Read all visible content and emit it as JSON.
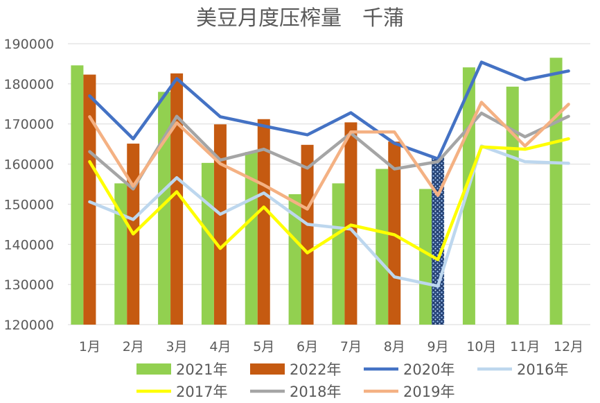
{
  "chart_data": {
    "type": "bar",
    "title": "美豆月度压榨量　千蒲",
    "xlabel": "",
    "ylabel": "",
    "ylim": [
      120000,
      190000
    ],
    "ytick_step": 10000,
    "grid": true,
    "legend_position": "bottom",
    "categories": [
      "1月",
      "2月",
      "3月",
      "4月",
      "5月",
      "6月",
      "7月",
      "8月",
      "9月",
      "10月",
      "11月",
      "12月"
    ],
    "bar_series": [
      {
        "name": "2021年",
        "color": "#92D050",
        "values": [
          184600,
          155200,
          178000,
          160300,
          163000,
          152500,
          155200,
          158800,
          153800,
          184100,
          179300,
          186500
        ]
      },
      {
        "name": "2022年",
        "color": "#C55A11",
        "pattern_month_index": 8,
        "values": [
          182300,
          165100,
          182600,
          169900,
          171200,
          164800,
          170400,
          165600,
          161700,
          null,
          null,
          null
        ]
      }
    ],
    "line_series": [
      {
        "name": "2020年",
        "color": "#4472C4",
        "values": [
          177000,
          166300,
          181300,
          171800,
          169500,
          167300,
          172800,
          165200,
          161300,
          185400,
          181000,
          183200
        ]
      },
      {
        "name": "2016年",
        "color": "#BDD7EE",
        "values": [
          150600,
          146200,
          156600,
          147500,
          152800,
          145000,
          143800,
          131900,
          129600,
          164500,
          160600,
          160200
        ]
      },
      {
        "name": "2017年",
        "color": "#FFFF00",
        "values": [
          160600,
          142600,
          153100,
          139000,
          149300,
          137900,
          144800,
          142400,
          136200,
          164300,
          163700,
          166300
        ]
      },
      {
        "name": "2018年",
        "color": "#A5A5A5",
        "values": [
          163100,
          153800,
          171900,
          161000,
          163700,
          159000,
          167700,
          158800,
          160600,
          172700,
          166800,
          171900
        ]
      },
      {
        "name": "2019年",
        "color": "#F4B183",
        "values": [
          171800,
          154500,
          170300,
          160100,
          154800,
          148800,
          168000,
          168000,
          152200,
          175400,
          164500,
          174900
        ]
      }
    ],
    "legend_order": [
      "2021年",
      "2022年",
      "2020年",
      "2016年",
      "2017年",
      "2018年",
      "2019年"
    ]
  }
}
